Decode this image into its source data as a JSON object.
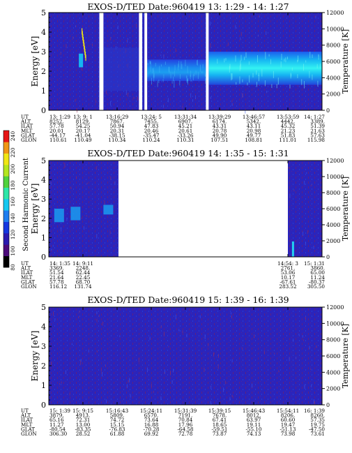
{
  "chart_data": {
    "type": "heatmap",
    "colorbar": {
      "label": "Second Harmonic Current",
      "ticks": [
        "80",
        "100",
        "120",
        "140",
        "160",
        "180",
        "200",
        "220",
        "240"
      ],
      "colors": [
        "#000000",
        "#4b0a7a",
        "#2a1ab0",
        "#1437e0",
        "#1e7ef0",
        "#14c8f0",
        "#2de6a8",
        "#50d23c",
        "#b4e61e",
        "#f0e614",
        "#f09614",
        "#e61414"
      ]
    },
    "panels": [
      {
        "id": "p1",
        "title": "EXOS-D/TED   Date:960419  13: 1:29 - 14: 1:27",
        "ylabel": "Energy [eV]",
        "y2label": "Temperature [K]",
        "ylim": [
          0,
          5
        ],
        "y2lim": [
          0,
          12000
        ],
        "yticks": [
          "0",
          "1",
          "2",
          "3",
          "4",
          "5"
        ],
        "y2ticks": [
          "0",
          "2000",
          "4000",
          "6000",
          "8000",
          "10000",
          "12000"
        ],
        "gaps": [
          [
            0.185,
            0.2
          ],
          [
            0.33,
            0.342
          ],
          [
            0.35,
            0.36
          ],
          [
            0.575,
            0.585
          ]
        ],
        "band": [
          {
            "from": 0.36,
            "to": 0.58,
            "low": 1.5,
            "high": 2.6,
            "level": "mid"
          },
          {
            "from": 0.585,
            "to": 1.0,
            "low": 1.3,
            "high": 3.0,
            "level": "high"
          }
        ],
        "rows": [
          {
            "label": "UT",
            "values": [
              "13: 1:29",
              "13: 9: 1",
              "13:16:29",
              "13:24: 5",
              "13:31:34",
              "13:39:29",
              "13:46:57",
              "13:53:59",
              "14: 1:27"
            ]
          },
          {
            "label": "ALT",
            "values": [
              "8252.",
              "8129.",
              "7867.",
              "7455.",
              "6907.",
              "6174.",
              "5342.",
              "4442.",
              "3389."
            ]
          },
          {
            "label": "ILAT",
            "values": [
              "57.78",
              "54.25",
              "50.94",
              "47.83",
              "45.21",
              "43.31",
              "43.11",
              "45.32",
              "51.39"
            ]
          },
          {
            "label": "MLT",
            "values": [
              "20.01",
              "20.17",
              "20.31",
              "20.46",
              "20.61",
              "20.78",
              "20.98",
              "21.23",
              "21.63"
            ]
          },
          {
            "label": "GLAT",
            "values": [
              "-44.17",
              "-41.04",
              "-38.15",
              "-35.47",
              "-33.26",
              "49.90",
              "49.77",
              "51.83",
              "57.63"
            ]
          },
          {
            "label": "GLON",
            "values": [
              "110.61",
              "110.49",
              "110.34",
              "110.24",
              "110.31",
              "107.51",
              "108.81",
              "111.01",
              "115.98"
            ]
          }
        ]
      },
      {
        "id": "p2",
        "title": "EXOS-D/TED   Date:960419  14: 1:35 - 15: 1:31",
        "ylabel": "Energy [eV]",
        "y2label": "Temperature [K]",
        "ylim": [
          0,
          5
        ],
        "y2lim": [
          0,
          12000
        ],
        "yticks": [
          "0",
          "1",
          "2",
          "3",
          "4",
          "5"
        ],
        "y2ticks": [
          "0",
          "2000",
          "4000",
          "6000",
          "8000",
          "10000",
          "12000"
        ],
        "data_segments": [
          [
            0,
            0.255
          ],
          [
            0.875,
            1.0
          ]
        ],
        "rows": [
          {
            "label": "UT",
            "values": [
              "14: 1:35",
              "14: 9:11",
              "14:54: 3",
              "15: 1:31"
            ]
          },
          {
            "label": "ALT",
            "values": [
              "3369.",
              "2248.",
              "2761.",
              "3860."
            ]
          },
          {
            "label": "ILAT",
            "values": [
              "51.54",
              "62.44",
              "53.06",
              "65.00"
            ]
          },
          {
            "label": "MLT",
            "values": [
              "21.64",
              "22.45",
              "10.17",
              "11.24"
            ]
          },
          {
            "label": "GLAT",
            "values": [
              "57.78",
              "68.70",
              "-67.61",
              "-80.37"
            ]
          },
          {
            "label": "GLON",
            "values": [
              "116.12",
              "131.74",
              "283.52",
              "305.50"
            ]
          }
        ]
      },
      {
        "id": "p3",
        "title": "EXOS-D/TED   Date:960419  15: 1:39 - 16: 1:39",
        "ylabel": "Energy [eV]",
        "y2label": "Temperature [K]",
        "ylim": [
          0,
          5
        ],
        "y2lim": [
          0,
          12000
        ],
        "yticks": [
          "0",
          "1",
          "2",
          "3",
          "4",
          "5"
        ],
        "y2ticks": [
          "0",
          "2000",
          "4000",
          "6000",
          "8000",
          "10000",
          "12000"
        ],
        "rows": [
          {
            "label": "UT",
            "values": [
              "15: 1:39",
              "15: 9:15",
              "15:16:43",
              "15:24:11",
              "15:31:39",
              "15:39:15",
              "15:46:43",
              "15:54:11",
              "16: 1:39"
            ]
          },
          {
            "label": "ALT",
            "values": [
              "3879.",
              "4913.",
              "5809.",
              "6570.",
              "7191.",
              "7678.",
              "8012.",
              "8206.",
              "8260."
            ]
          },
          {
            "label": "ILAT",
            "values": [
              "65.16",
              "72.31",
              "74.72",
              "73.64",
              "70.84",
              "67.41",
              "63.97",
              "60.60",
              "57.35"
            ]
          },
          {
            "label": "MLT",
            "values": [
              "11.27",
              "13.00",
              "15.15",
              "16.88",
              "17.96",
              "18.65",
              "19.11",
              "19.47",
              "19.75"
            ]
          },
          {
            "label": "GLAT",
            "values": [
              "-80.54",
              "-83.35",
              "-76.83",
              "-70.28",
              "-64.58",
              "-59.51",
              "-55.10",
              "-51.13",
              "-47.50"
            ]
          },
          {
            "label": "GLON",
            "values": [
              "306.30",
              "28.52",
              "61.88",
              "69.92",
              "72.78",
              "73.87",
              "74.13",
              "73.98",
              "73.61"
            ]
          }
        ]
      }
    ]
  }
}
